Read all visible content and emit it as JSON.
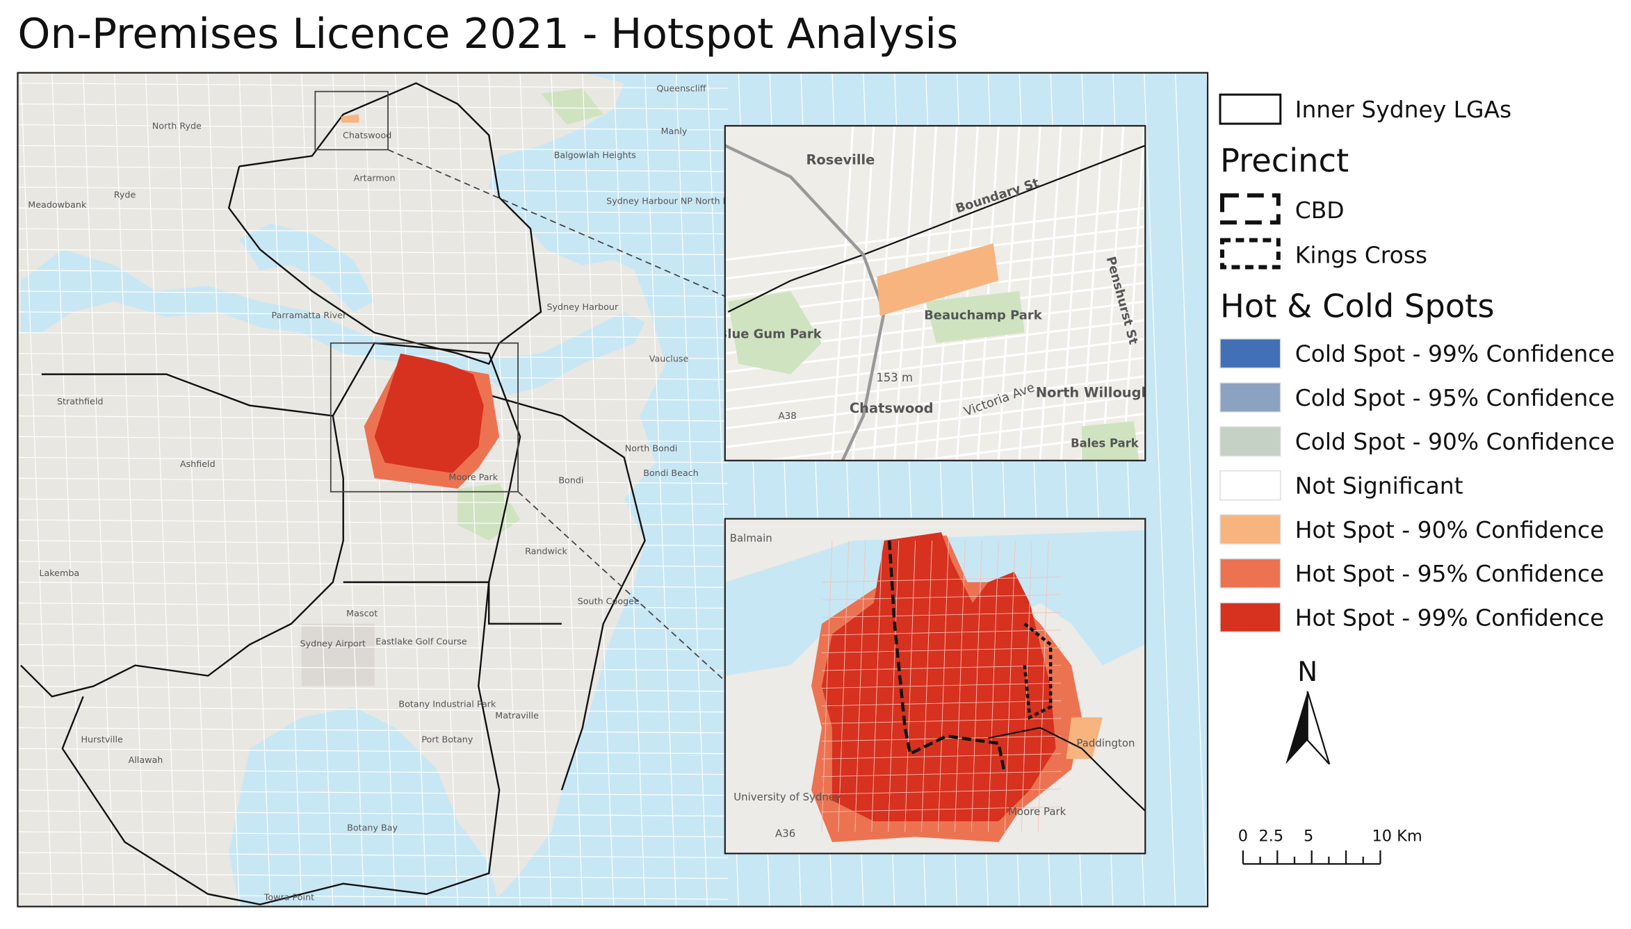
{
  "title": "On-Premises Licence 2021 - Hotspot Analysis",
  "legend": {
    "boundary": "Inner Sydney LGAs",
    "precinct_heading": "Precinct",
    "precincts": [
      {
        "label": "CBD"
      },
      {
        "label": "Kings Cross"
      }
    ],
    "hotspot_heading": "Hot & Cold Spots",
    "classes": [
      {
        "label": "Cold Spot - 99% Confidence",
        "color": "#4170b6"
      },
      {
        "label": "Cold Spot - 95% Confidence",
        "color": "#8ba2c1"
      },
      {
        "label": "Cold Spot - 90% Confidence",
        "color": "#c6d1c5"
      },
      {
        "label": "Not Significant",
        "color": "#ffffff"
      },
      {
        "label": "Hot Spot - 90% Confidence",
        "color": "#f8b47e"
      },
      {
        "label": "Hot Spot - 95% Confidence",
        "color": "#ec7352"
      },
      {
        "label": "Hot Spot - 99% Confidence",
        "color": "#d7311f"
      }
    ]
  },
  "north_label": "N",
  "scale_bar": {
    "labels": [
      "0",
      "2.5",
      "5",
      "10 Km"
    ]
  },
  "main_map": {
    "labels": [
      "North Ryde",
      "Chatswood",
      "Queenscliff",
      "Manly",
      "Balgowlah Heights",
      "Artarmon",
      "Ryde",
      "Meadowbank",
      "Sydney Harbour NP North Head",
      "Parramatta River",
      "Sydney Harbour",
      "Strathfield",
      "Ashfield",
      "Vaucluse",
      "North Bondi",
      "Bondi Beach",
      "Bondi",
      "Moore Park",
      "Randwick",
      "Lakemba",
      "South Coogee",
      "Mascot",
      "Sydney Airport",
      "Eastlake Golf Course",
      "Botany Industrial Park",
      "Port Botany",
      "Matraville",
      "Hurstville",
      "Allawah",
      "Botany Bay",
      "Towra Point"
    ]
  },
  "inset_chatswood": {
    "labels": [
      "Roseville",
      "Boundary St",
      "Penshurst St",
      "Blue Gum Park",
      "Beauchamp Park",
      "Chatswood",
      "Victoria Ave",
      "North Willoughby",
      "Bales Park",
      "A38",
      "153 m"
    ]
  },
  "inset_cbd": {
    "labels": [
      "Balmain",
      "Paddington",
      "University of Sydney",
      "Moore Park",
      "A36"
    ]
  }
}
